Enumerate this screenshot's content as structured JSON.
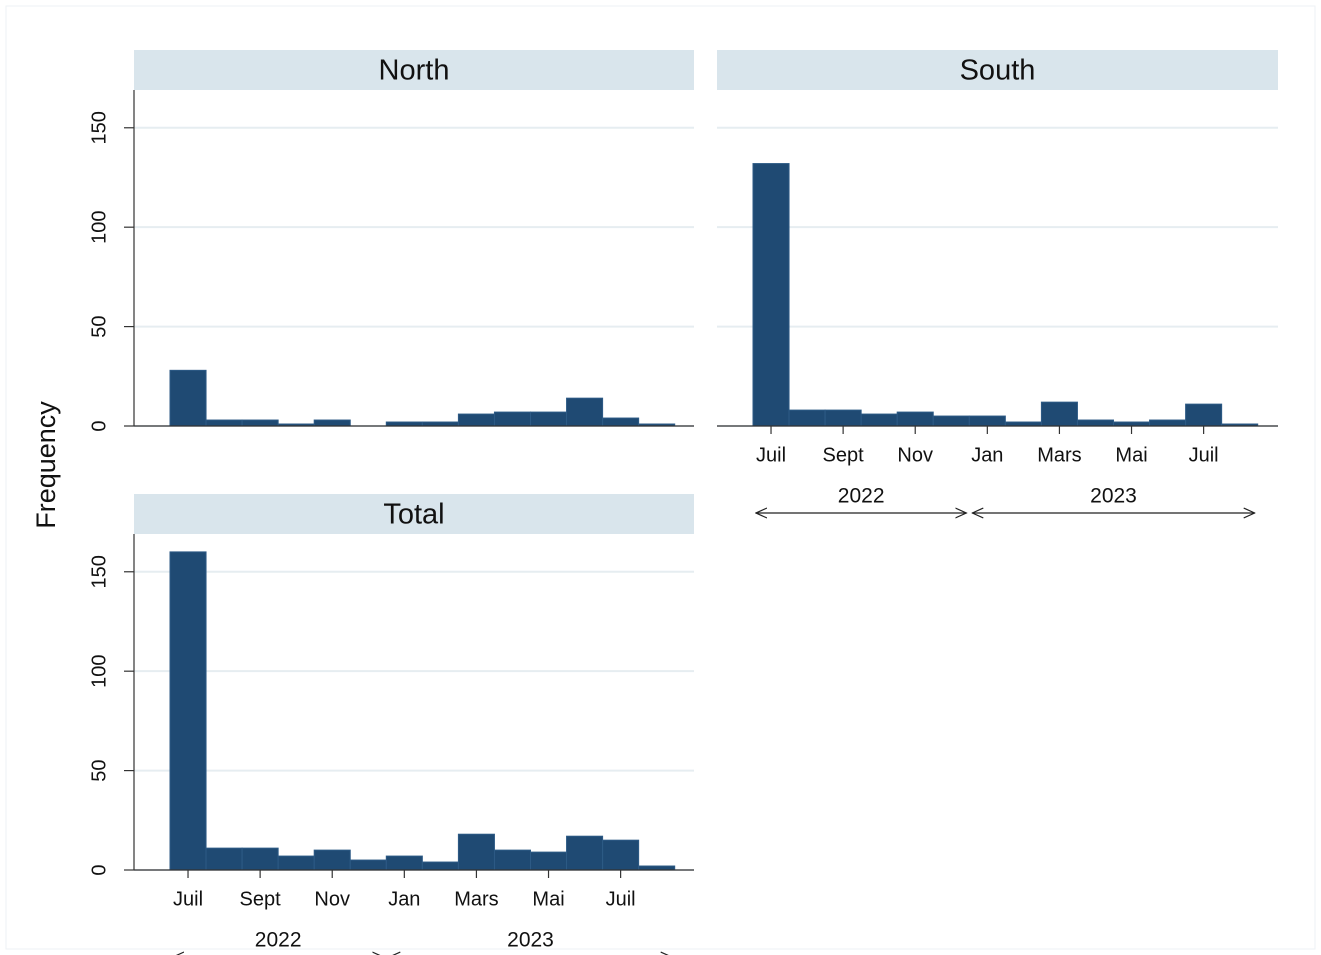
{
  "chart_data": {
    "type": "bar",
    "y_label": "Frequency",
    "categories": [
      "Juil",
      null,
      "Sept",
      null,
      "Nov",
      null,
      "Jan",
      null,
      "Mars",
      null,
      "Mai",
      null,
      "Juil",
      null
    ],
    "years": [
      {
        "label": "2022",
        "first": 0,
        "last": 5
      },
      {
        "label": "2023",
        "first": 6,
        "last": 13
      }
    ],
    "ylim": [
      0,
      169
    ],
    "yticks": [
      0,
      50,
      100,
      150
    ],
    "grid": true,
    "color": "#1f4a73",
    "panels": [
      {
        "title": "North",
        "values": [
          28,
          3,
          3,
          1,
          3,
          0,
          2,
          2,
          6,
          7,
          7,
          14,
          4,
          1
        ]
      },
      {
        "title": "South",
        "values": [
          132,
          8,
          8,
          6,
          7,
          5,
          5,
          2,
          12,
          3,
          2,
          3,
          11,
          1
        ]
      },
      {
        "title": "Total",
        "values": [
          160,
          11,
          11,
          7,
          10,
          5,
          7,
          4,
          18,
          10,
          9,
          17,
          15,
          2
        ]
      }
    ]
  }
}
